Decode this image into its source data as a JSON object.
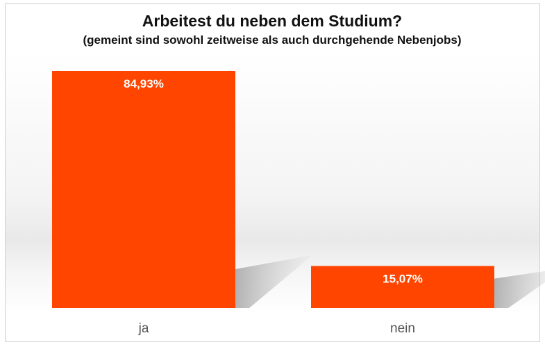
{
  "chart_data": {
    "type": "bar",
    "title": "Arbeitest du neben dem Studium?",
    "subtitle": "(gemeint sind sowohl zeitweise als auch durchgehende Nebenjobs)",
    "categories": [
      "ja",
      "nein"
    ],
    "values": [
      84.93,
      15.07
    ],
    "value_labels": [
      "84,93%",
      "15,07%"
    ],
    "ylim": [
      0,
      100
    ],
    "bar_color": "#ff4500",
    "background_color": "#ffffff",
    "grid": false,
    "legend": "none"
  }
}
